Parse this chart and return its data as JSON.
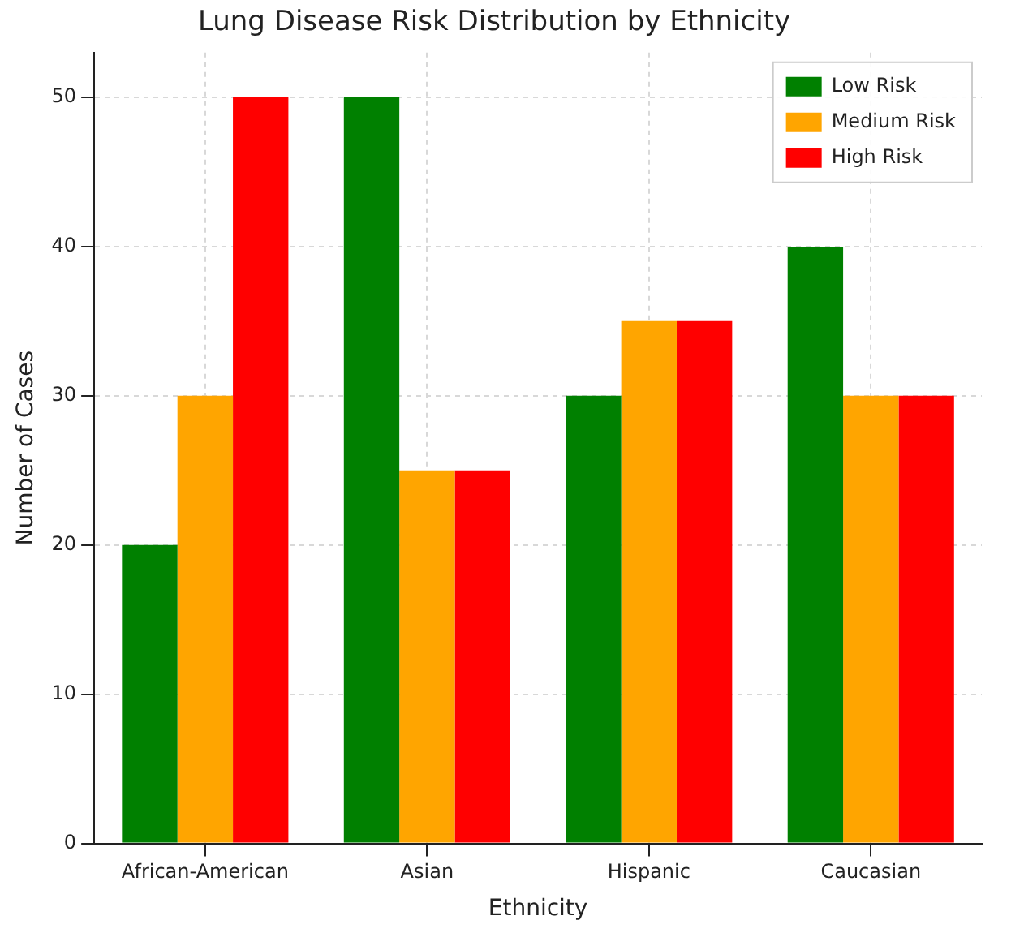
{
  "chart_data": {
    "type": "bar",
    "title": "Lung Disease Risk Distribution by Ethnicity",
    "xlabel": "Ethnicity",
    "ylabel": "Number of Cases",
    "categories": [
      "African-American",
      "Asian",
      "Hispanic",
      "Caucasian"
    ],
    "series": [
      {
        "name": "Low Risk",
        "color": "#008000",
        "values": [
          20,
          50,
          30,
          40
        ]
      },
      {
        "name": "Medium Risk",
        "color": "#ffa500",
        "values": [
          30,
          25,
          35,
          30
        ]
      },
      {
        "name": "High Risk",
        "color": "#ff0000",
        "values": [
          50,
          25,
          35,
          30
        ]
      }
    ],
    "ylim": [
      0,
      53
    ],
    "yticks": [
      0,
      10,
      20,
      30,
      40,
      50
    ],
    "grid": true,
    "legend": "top right"
  }
}
